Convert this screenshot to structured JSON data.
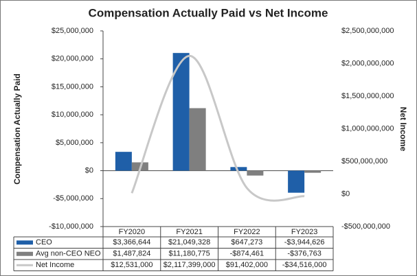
{
  "chart_data": {
    "type": "bar",
    "title": "Compensation Actually Paid vs Net Income",
    "ylabel": "Compensation Actually Paid",
    "y2label": "Net Income",
    "categories": [
      "FY2020",
      "FY2021",
      "FY2022",
      "FY2023"
    ],
    "series": [
      {
        "name": "CEO",
        "type": "bar",
        "color": "#1f5fa8",
        "values": [
          3366644,
          21049328,
          647273,
          -3944626
        ],
        "value_labels": [
          "$3,366,644",
          "$21,049,328",
          "$647,273",
          "-$3,944,626"
        ]
      },
      {
        "name": "Avg non-CEO NEO",
        "type": "bar",
        "color": "#7f7f7f",
        "values": [
          1487824,
          11180775,
          -874461,
          -376763
        ],
        "value_labels": [
          "$1,487,824",
          "$11,180,775",
          "-$874,461",
          "-$376,763"
        ]
      },
      {
        "name": "Net Income",
        "type": "line",
        "axis": "y2",
        "color": "#c8c8c8",
        "values": [
          12531000,
          2117399000,
          91402000,
          -34516000
        ],
        "value_labels": [
          "$12,531,000",
          "$2,117,399,000",
          "$91,402,000",
          "-$34,516,000"
        ]
      }
    ],
    "ylim": [
      -10000000,
      25000000
    ],
    "yticks": [
      {
        "value": -10000000,
        "label": "-$10,000,000"
      },
      {
        "value": -5000000,
        "label": "-$5,000,000"
      },
      {
        "value": 0,
        "label": "$0"
      },
      {
        "value": 5000000,
        "label": "$5,000,000"
      },
      {
        "value": 10000000,
        "label": "$10,000,000"
      },
      {
        "value": 15000000,
        "label": "$15,000,000"
      },
      {
        "value": 20000000,
        "label": "$20,000,000"
      },
      {
        "value": 25000000,
        "label": "$25,000,000"
      }
    ],
    "y2lim": [
      -500000000,
      2500000000
    ],
    "y2ticks": [
      {
        "value": -500000000,
        "label": "-$500,000,000"
      },
      {
        "value": 0,
        "label": "$0"
      },
      {
        "value": 500000000,
        "label": "$500,000,000"
      },
      {
        "value": 1000000000,
        "label": "$1,000,000,000"
      },
      {
        "value": 1500000000,
        "label": "$1,500,000,000"
      },
      {
        "value": 2000000000,
        "label": "$2,000,000,000"
      },
      {
        "value": 2500000000,
        "label": "$2,500,000,000"
      }
    ]
  }
}
